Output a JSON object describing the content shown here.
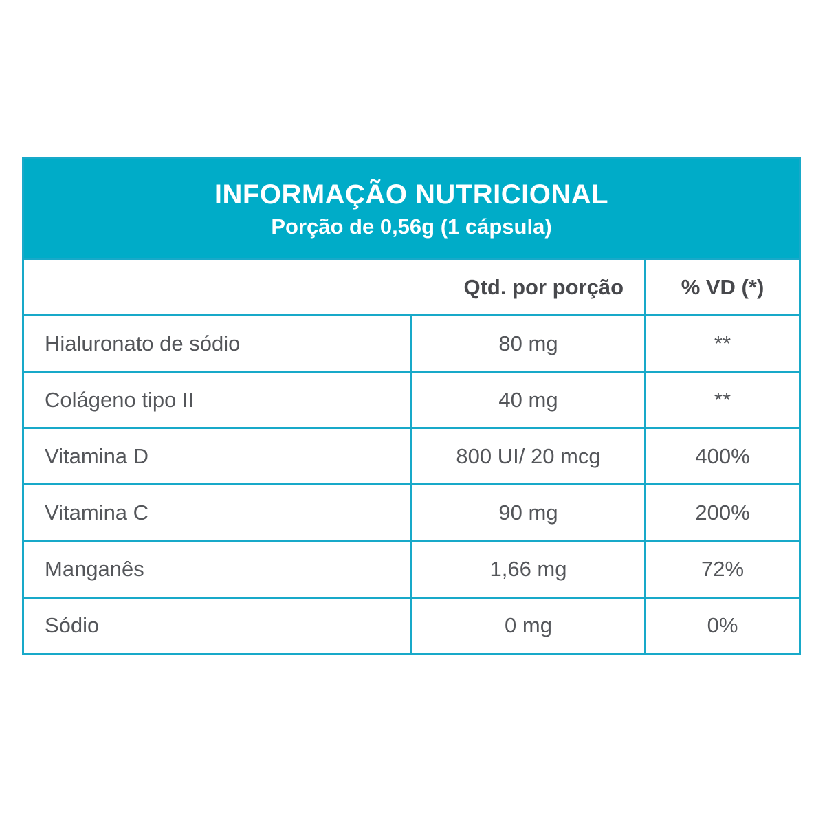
{
  "label": {
    "title": "INFORMAÇÃO NUTRICIONAL",
    "subtitle": "Porção de 0,56g (1 cápsula)",
    "columns": {
      "qty": "Qtd. por porção",
      "dv": "% VD (*)"
    },
    "rows": [
      {
        "name": "Hialuronato de sódio",
        "qty": "80 mg",
        "dv": "**"
      },
      {
        "name": "Colágeno tipo II",
        "qty": "40 mg",
        "dv": "**"
      },
      {
        "name": "Vitamina D",
        "qty": "800 UI/ 20 mcg",
        "dv": "400%"
      },
      {
        "name": "Vitamina C",
        "qty": "90 mg",
        "dv": "200%"
      },
      {
        "name": "Manganês",
        "qty": "1,66 mg",
        "dv": "72%"
      },
      {
        "name": "Sódio",
        "qty": "0 mg",
        "dv": "0%"
      }
    ],
    "colors": {
      "band": "#00acc8",
      "grid_line": "#18a9c9",
      "body_text": "#54565a",
      "header_text": "#47484c",
      "title_text": "#ffffff"
    }
  }
}
